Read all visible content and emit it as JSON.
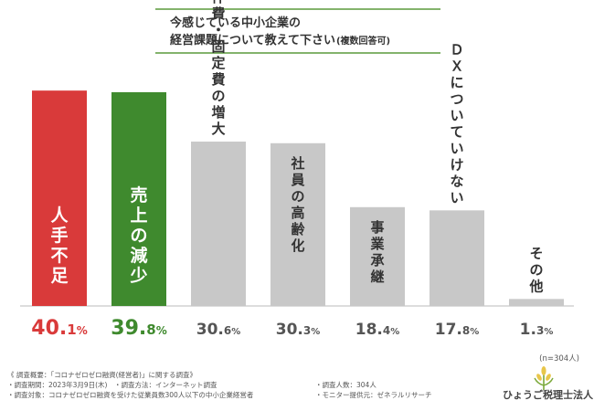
{
  "chart_data": {
    "type": "bar",
    "title": [
      "今感じている中小企業の",
      "経営課題について教えて下さい"
    ],
    "title_suffix": "(複数回答可)",
    "categories": [
      "人手不足",
      "売上の減少",
      "人件費・固定費の増大",
      "社員の高齢化",
      "事業承継",
      "ＤＸについていけない",
      "その他"
    ],
    "values": [
      40.1,
      39.8,
      30.6,
      30.3,
      18.4,
      17.8,
      1.3
    ],
    "value_labels": [
      {
        "int": "40.",
        "dec": "1",
        "pct": "%"
      },
      {
        "int": "39.",
        "dec": "8",
        "pct": "%"
      },
      {
        "int": "30.",
        "dec": "6",
        "pct": "%"
      },
      {
        "int": "30.",
        "dec": "3",
        "pct": "%"
      },
      {
        "int": "18.",
        "dec": "4",
        "pct": "%"
      },
      {
        "int": "17.",
        "dec": "8",
        "pct": "%"
      },
      {
        "int": "1.",
        "dec": "3",
        "pct": "%"
      }
    ],
    "ylim": [
      0,
      42
    ],
    "colors": {
      "bars": [
        "#d93a3a",
        "#3f8a2e",
        "#c8c8c8",
        "#c8c8c8",
        "#c8c8c8",
        "#c8c8c8",
        "#c8c8c8"
      ],
      "labels_on_bar": [
        "#ffffff",
        "#ffffff",
        "#333333",
        "#333333",
        "#333333",
        "#333333",
        "#333333"
      ],
      "values": [
        "#d93a3a",
        "#3f8a2e",
        "#555555",
        "#555555",
        "#555555",
        "#555555",
        "#555555"
      ],
      "title_border": "#5a9a3c"
    }
  },
  "sample_size": "(n=304人)",
  "footnotes": {
    "left": [
      "《 調査概要：「コロナゼロゼロ融資(経営者)」に関する調査》",
      "・調査期間：2023年3月9日(木)　・調査方法：インターネット調査",
      "・調査対象：コロナゼロゼロ融資を受けた従業員数300人以下の中小企業経営者"
    ],
    "right": [
      "・調査人数：304人",
      "・モニター提供元：ゼネラルリサーチ"
    ]
  },
  "logo": {
    "text": "ひょうご税理士法人",
    "icon": "wheat-sprout-icon"
  }
}
